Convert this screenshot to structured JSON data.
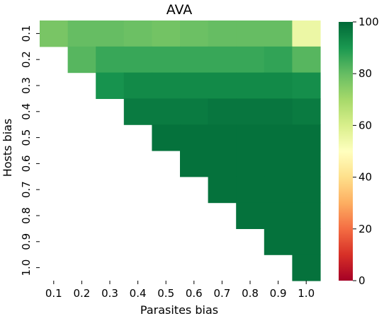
{
  "chart_data": {
    "type": "heatmap",
    "title": "AVA",
    "xlabel": "Parasites bias",
    "ylabel": "Hosts bias",
    "x_ticks": [
      "0.1",
      "0.2",
      "0.3",
      "0.4",
      "0.5",
      "0.6",
      "0.7",
      "0.8",
      "0.9",
      "1.0"
    ],
    "y_ticks": [
      "0.1",
      "0.2",
      "0.3",
      "0.4",
      "0.5",
      "0.6",
      "0.7",
      "0.8",
      "0.9",
      "1.0"
    ],
    "colorbar": {
      "min": 0,
      "max": 100,
      "ticks": [
        "0",
        "20",
        "40",
        "60",
        "80",
        "100"
      ],
      "colormap": "RdYlGn"
    },
    "values": [
      [
        77,
        80,
        80,
        79,
        78,
        79,
        80,
        80,
        80,
        55
      ],
      [
        null,
        82,
        86,
        86,
        86,
        86,
        86,
        86,
        87,
        82
      ],
      [
        null,
        null,
        91,
        93,
        93,
        93,
        93,
        93,
        93,
        92
      ],
      [
        null,
        null,
        null,
        96,
        96,
        96,
        97,
        97,
        97,
        96
      ],
      [
        null,
        null,
        null,
        null,
        98,
        98,
        98,
        98,
        98,
        98
      ],
      [
        null,
        null,
        null,
        null,
        null,
        98,
        98,
        98,
        98,
        98
      ],
      [
        null,
        null,
        null,
        null,
        null,
        null,
        98,
        98,
        98,
        98
      ],
      [
        null,
        null,
        null,
        null,
        null,
        null,
        null,
        98,
        98,
        98
      ],
      [
        null,
        null,
        null,
        null,
        null,
        null,
        null,
        null,
        98,
        98
      ],
      [
        null,
        null,
        null,
        null,
        null,
        null,
        null,
        null,
        null,
        98
      ]
    ]
  }
}
